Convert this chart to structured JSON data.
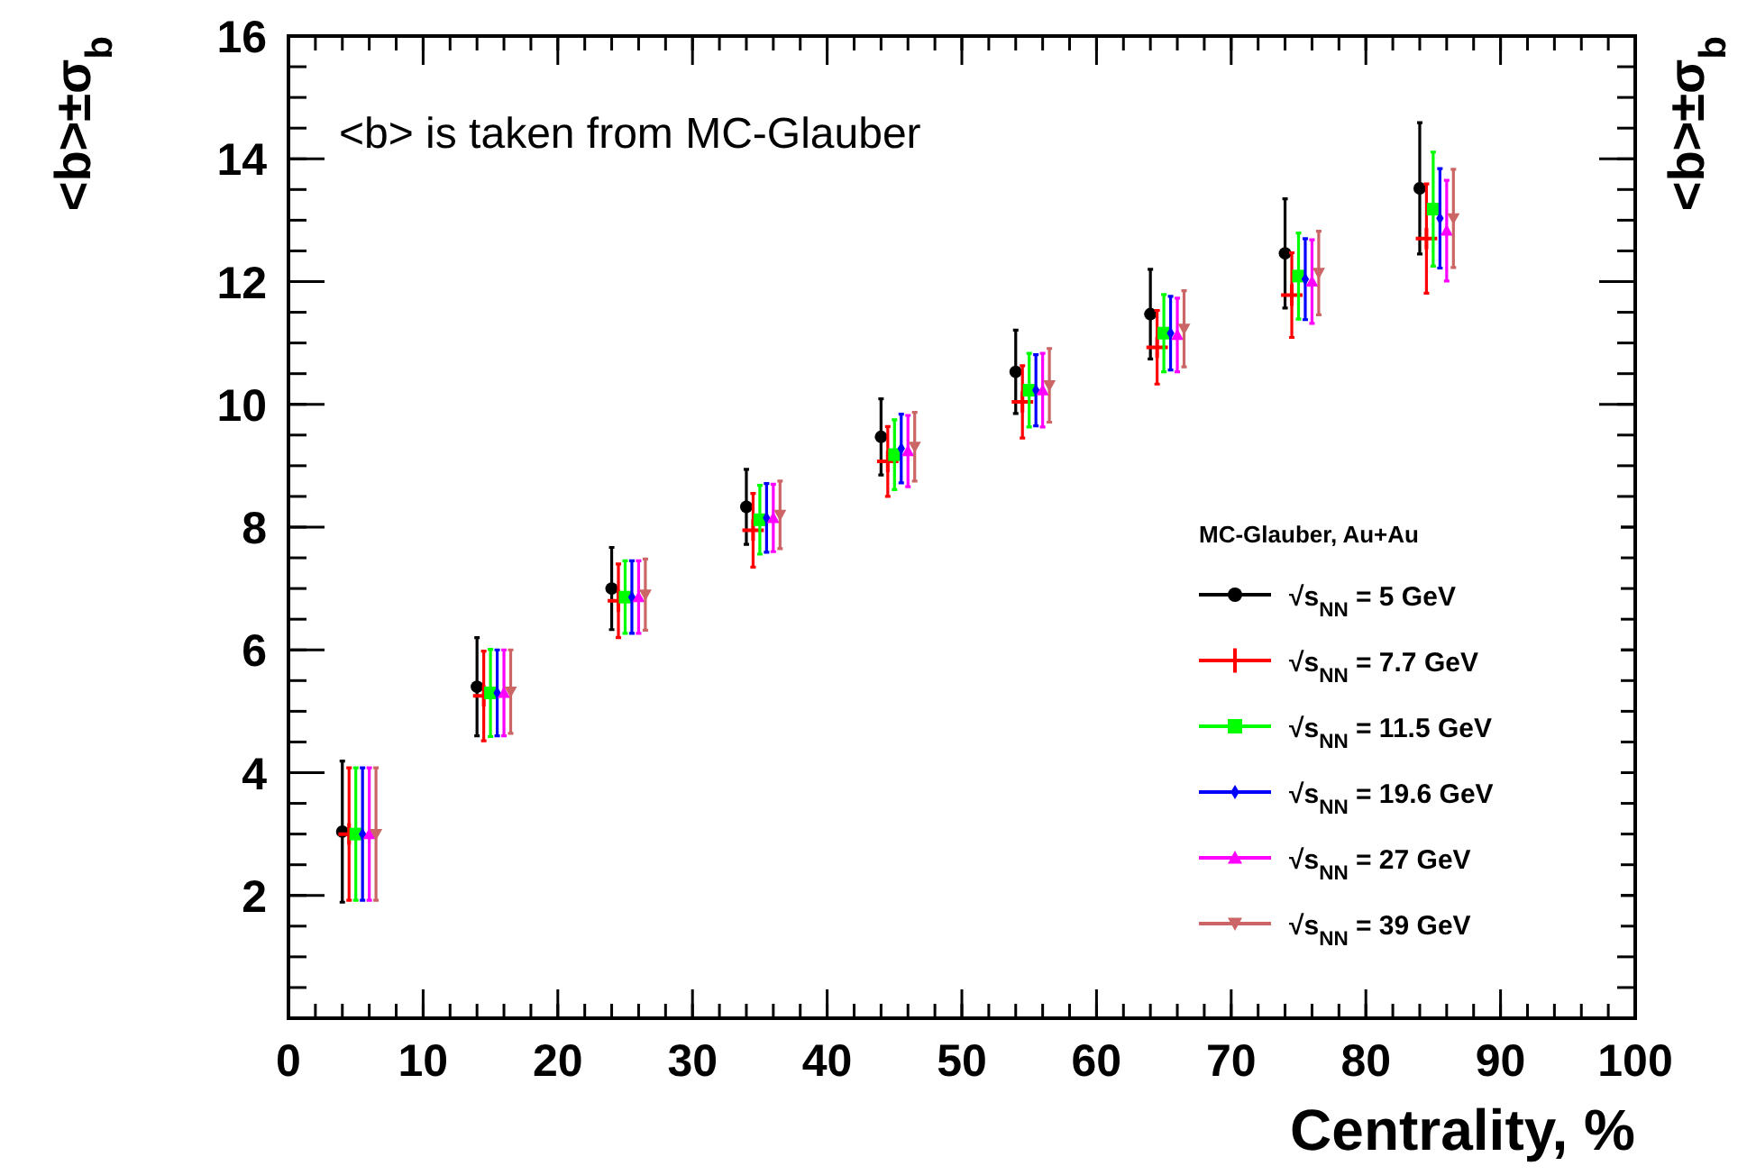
{
  "chart_data": {
    "type": "scatter",
    "xlabel": "Centrality, %",
    "ylabel": "<b>±σ$_{b}$",
    "y2label": "<b>±σ$_{b}$",
    "annotations": [
      "<b> is taken from MC-Glauber"
    ],
    "legend_title": "MC-Glauber, Au+Au",
    "legend": "bottom right",
    "grid": false,
    "xlim": [
      0,
      100
    ],
    "xticks": [
      0,
      10,
      20,
      30,
      40,
      50,
      60,
      70,
      80,
      90,
      100
    ],
    "ylim": [
      0,
      16
    ],
    "yticks": [
      2,
      4,
      6,
      8,
      10,
      12,
      14,
      16
    ],
    "series": [
      {
        "name": "√s$_{NN}$ = 5 GeV",
        "color": "#000000",
        "marker": "circle",
        "x": [
          4,
          14,
          24,
          34,
          44,
          54,
          64,
          74,
          84
        ],
        "values": [
          3.04,
          5.4,
          7.0,
          8.33,
          9.47,
          10.53,
          11.47,
          12.46,
          13.52
        ],
        "errors": [
          1.15,
          0.8,
          0.67,
          0.61,
          0.62,
          0.68,
          0.73,
          0.89,
          1.07
        ]
      },
      {
        "name": "√s$_{NN}$ = 7.7 GeV",
        "color": "#ff0000",
        "marker": "cross",
        "x": [
          4.5,
          14.5,
          24.5,
          34.5,
          44.5,
          54.5,
          64.5,
          74.5,
          84.5
        ],
        "values": [
          3.0,
          5.25,
          6.8,
          7.95,
          9.07,
          10.04,
          10.93,
          11.78,
          12.7
        ],
        "errors": [
          1.08,
          0.73,
          0.6,
          0.6,
          0.57,
          0.59,
          0.6,
          0.69,
          0.89
        ]
      },
      {
        "name": "√s$_{NN}$ = 11.5 GeV",
        "color": "#00ff00",
        "marker": "square",
        "x": [
          5,
          15,
          25,
          35,
          45,
          55,
          65,
          75,
          85
        ],
        "values": [
          3.0,
          5.3,
          6.86,
          8.12,
          9.18,
          10.23,
          11.16,
          12.09,
          13.18
        ],
        "errors": [
          1.08,
          0.71,
          0.59,
          0.56,
          0.57,
          0.6,
          0.63,
          0.7,
          0.93
        ]
      },
      {
        "name": "√s$_{NN}$ = 19.6 GeV",
        "color": "#0000ff",
        "marker": "diamond",
        "x": [
          5.5,
          15.5,
          25.5,
          35.5,
          45.5,
          55.5,
          65.5,
          75.5,
          85.5
        ],
        "values": [
          3.0,
          5.3,
          6.86,
          8.15,
          9.28,
          10.23,
          11.16,
          12.04,
          13.03
        ],
        "errors": [
          1.08,
          0.7,
          0.59,
          0.56,
          0.56,
          0.58,
          0.6,
          0.66,
          0.81
        ]
      },
      {
        "name": "√s$_{NN}$ = 27 GeV",
        "color": "#ff00ff",
        "marker": "triangle",
        "x": [
          6,
          16,
          26,
          36,
          46,
          56,
          66,
          76,
          86
        ],
        "values": [
          3.0,
          5.3,
          6.86,
          8.15,
          9.24,
          10.23,
          11.13,
          12.0,
          12.83
        ],
        "errors": [
          1.08,
          0.7,
          0.59,
          0.55,
          0.58,
          0.6,
          0.6,
          0.68,
          0.82
        ]
      },
      {
        "name": "√s$_{NN}$ = 39 GeV",
        "color": "#cc6666",
        "marker": "triangle-down",
        "x": [
          6.5,
          16.5,
          26.5,
          36.5,
          46.5,
          56.5,
          66.5,
          76.5,
          86.5
        ],
        "values": [
          3.0,
          5.32,
          6.9,
          8.2,
          9.31,
          10.31,
          11.23,
          12.14,
          13.03
        ],
        "errors": [
          1.08,
          0.68,
          0.58,
          0.55,
          0.56,
          0.6,
          0.62,
          0.68,
          0.8
        ]
      }
    ]
  }
}
